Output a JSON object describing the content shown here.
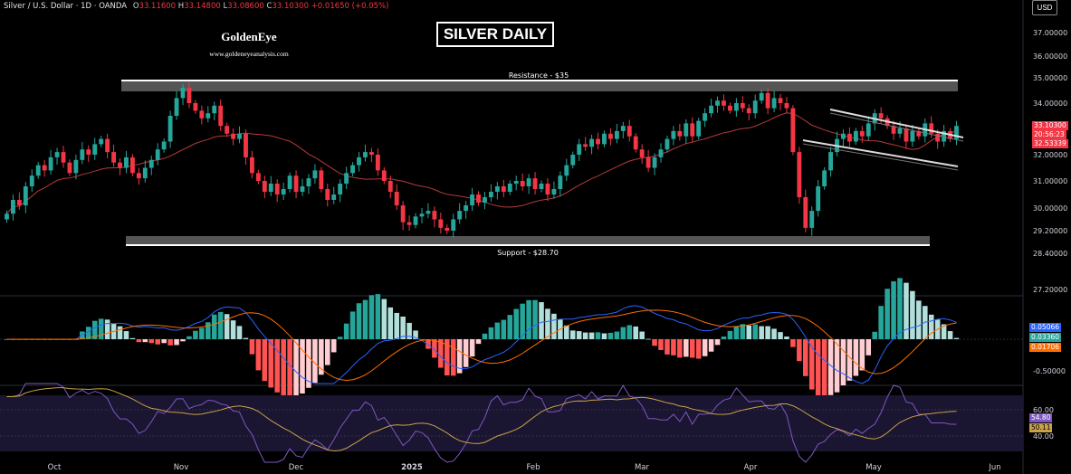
{
  "header": {
    "symbol": "Silver / U.S. Dollar · 1D · OANDA",
    "o_label": "O",
    "o_value": "33.11600",
    "h_label": "H",
    "h_value": "33.14800",
    "l_label": "L",
    "l_value": "33.08600",
    "c_label": "C",
    "c_value": "33.10300",
    "change": "+0.01650 (+0.05%)"
  },
  "title": "SILVER DAILY",
  "logo": {
    "name": "GoldenEye",
    "site": "www.goldeneyeanalysis.com"
  },
  "currency": "USD",
  "colors": {
    "up": "#26a69a",
    "down": "#f23645",
    "ma": "#b33a3a",
    "macd": "#2962ff",
    "signal": "#ff6d00",
    "rsi": "#7e57c2",
    "rsi_ma": "#c9a24a"
  },
  "chart_data": [
    {
      "type": "candlestick",
      "title": "SILVER DAILY",
      "y_axis_ticks": [
        "37.00000",
        "36.00000",
        "35.00000",
        "34.00000",
        "31.00000",
        "30.00000",
        "29.20000",
        "28.40000",
        "27.20000"
      ],
      "ylim": [
        27.0,
        37.3
      ],
      "x_axis_ticks": [
        "Oct",
        "Nov",
        "Dec",
        "2025",
        "Feb",
        "Mar",
        "Apr",
        "May",
        "Jun"
      ],
      "price_labels": [
        "33.10300",
        "20:56:23",
        "32.53339"
      ],
      "hidden_tick_32": "32.00000",
      "hidden_tick_33": "33.10300",
      "annotations": {
        "resistance": "Resistance - $35",
        "support": "Support - $28.70"
      },
      "series": [
        {
          "name": "",
          "closes": [
            29.8,
            30.3,
            30.1,
            30.8,
            31.2,
            31.6,
            31.4,
            31.9,
            32.1,
            31.7,
            31.3,
            31.8,
            32.2,
            32.0,
            32.4,
            32.6,
            32.1,
            31.7,
            31.5,
            31.9,
            31.3,
            31.1,
            31.5,
            31.8,
            32.2,
            32.5,
            33.5,
            34.2,
            34.6,
            34.0,
            33.7,
            33.4,
            33.6,
            33.9,
            33.1,
            32.8,
            32.6,
            32.8,
            31.9,
            31.3,
            31.0,
            30.6,
            30.9,
            30.5,
            30.7,
            31.2,
            30.6,
            30.8,
            31.1,
            31.4,
            30.7,
            30.3,
            30.5,
            30.9,
            31.3,
            31.6,
            31.9,
            32.1,
            32.0,
            31.4,
            31.0,
            30.6,
            30.1,
            29.5,
            29.4,
            29.7,
            29.8,
            29.9,
            29.6,
            29.3,
            29.2,
            29.6,
            29.9,
            30.1,
            30.5,
            30.2,
            30.4,
            30.6,
            30.8,
            30.6,
            30.9,
            31.0,
            30.8,
            31.1,
            30.7,
            30.9,
            30.5,
            30.7,
            31.2,
            31.6,
            32.0,
            32.4,
            32.3,
            32.6,
            32.4,
            32.8,
            32.6,
            32.9,
            33.1,
            32.7,
            32.2,
            31.9,
            31.5,
            31.9,
            32.2,
            32.6,
            32.9,
            32.7,
            33.2,
            32.7,
            33.3,
            33.6,
            33.9,
            34.1,
            33.9,
            33.7,
            34.0,
            33.8,
            33.6,
            34.1,
            34.4,
            33.8,
            34.2,
            34.0,
            33.8,
            32.1,
            30.4,
            29.3,
            29.9,
            30.8,
            31.4,
            32.1,
            32.6,
            32.8,
            32.5,
            32.9,
            32.7,
            33.2,
            33.6,
            33.4,
            33.1,
            32.8,
            33.0,
            32.5,
            32.9,
            32.7,
            33.2,
            32.8,
            32.5,
            32.9,
            32.6,
            33.1
          ]
        }
      ],
      "moving_average": {
        "name": ""
      }
    },
    {
      "type": "macd",
      "y_axis_ticks": [
        "-0.50000"
      ],
      "value_labels": [
        "0.05066",
        "0.03360",
        "0.01706"
      ]
    },
    {
      "type": "rsi",
      "y_axis_ticks": [
        "60.00",
        "40.00"
      ],
      "value_labels": [
        "54.80",
        "50.11"
      ]
    }
  ]
}
